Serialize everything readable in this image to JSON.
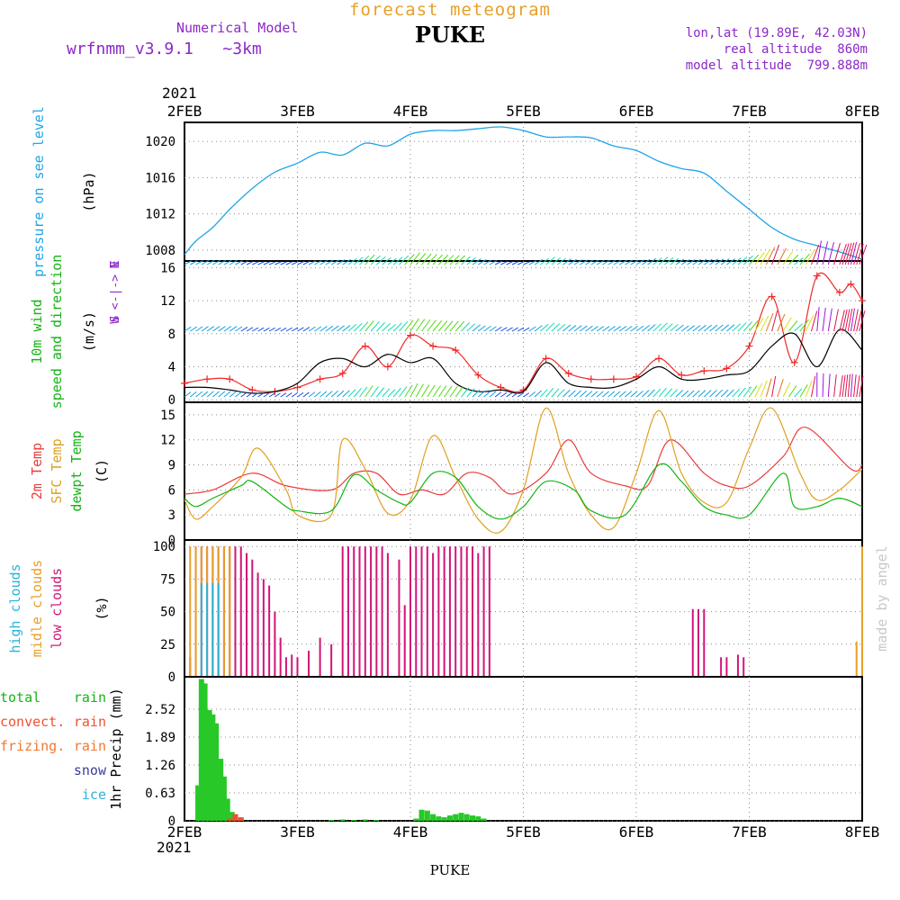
{
  "header": {
    "subtitle": "forecast meteogram",
    "station": "PUKE",
    "model_label": "Numerical Model",
    "model_name": "wrfnmm_v3.9.1   ~3km",
    "location": "lon,lat (19.89E, 42.03N)",
    "real_altitude": "real altitude  860m",
    "model_altitude": "model altitude  799.888m",
    "credit": "made by angel",
    "footer_station": "PUKE"
  },
  "colors": {
    "pressure": "#1fa5e8",
    "wind10m": "#f02828",
    "gust": "#000000",
    "temp2m": "#e83c3c",
    "sfcTemp": "#e0a020",
    "dewpt": "#14b414",
    "lowClouds": "#d21478",
    "midClouds": "#e6a028",
    "highClouds": "#2ab4d8",
    "rain": "#28c828",
    "convRain": "#f05030",
    "purpleText": "#8c28c8"
  },
  "chart_data": {
    "type": "line",
    "year": "2021",
    "x_ticks": [
      "2FEB",
      "3FEB",
      "4FEB",
      "5FEB",
      "6FEB",
      "7FEB",
      "8FEB"
    ],
    "panels": [
      {
        "id": "pressure",
        "labels": [
          "pressure on see level",
          "(hPa)"
        ],
        "yticks": [
          "1008",
          "1012",
          "1016",
          "1020"
        ],
        "ylim": [
          1006.8,
          1022.1
        ],
        "series": [
          {
            "name": "pressure on see level",
            "x": [
              0,
              0.1,
              0.25,
              0.4,
              0.6,
              0.8,
              1.0,
              1.2,
              1.4,
              1.6,
              1.8,
              2.0,
              2.2,
              2.4,
              2.6,
              2.8,
              3.0,
              3.2,
              3.4,
              3.6,
              3.8,
              4.0,
              4.2,
              4.4,
              4.6,
              4.8,
              5.0,
              5.2,
              5.4,
              5.6,
              5.8,
              6.0
            ],
            "y": [
              1007.5,
              1009,
              1010.5,
              1012.5,
              1014.8,
              1016.6,
              1017.6,
              1018.8,
              1018.5,
              1019.8,
              1019.5,
              1020.8,
              1021.2,
              1021.2,
              1021.4,
              1021.6,
              1021.2,
              1020.5,
              1020.5,
              1020.4,
              1019.5,
              1019.0,
              1017.8,
              1017.0,
              1016.5,
              1014.5,
              1012.5,
              1010.5,
              1009.2,
              1008.5,
              1007.8,
              1007.0
            ]
          }
        ]
      },
      {
        "id": "wind",
        "labels": [
          "10m wind",
          "speed and direction",
          "(m/s)"
        ],
        "direction_labels": [
          "N",
          "W <-|-> E",
          "S"
        ],
        "yticks": [
          "0",
          "4",
          "8",
          "12",
          "16"
        ],
        "ylim": [
          -0.3,
          16.8
        ],
        "series": [
          {
            "name": "10m wind",
            "x": [
              0,
              0.2,
              0.4,
              0.6,
              0.8,
              1.0,
              1.2,
              1.4,
              1.6,
              1.8,
              2.0,
              2.2,
              2.4,
              2.6,
              2.8,
              3.0,
              3.2,
              3.4,
              3.6,
              3.8,
              4.0,
              4.2,
              4.4,
              4.6,
              4.8,
              5.0,
              5.2,
              5.4,
              5.6,
              5.8,
              5.9,
              6.0
            ],
            "y": [
              2.0,
              2.5,
              2.5,
              1.2,
              1.0,
              1.5,
              2.5,
              3.2,
              6.5,
              4.0,
              7.8,
              6.5,
              6.0,
              3.0,
              1.5,
              1.2,
              5.0,
              3.2,
              2.5,
              2.5,
              2.8,
              5.0,
              3.0,
              3.5,
              3.8,
              6.5,
              12.5,
              4.5,
              15.0,
              13.0,
              14.0,
              12.0
            ]
          },
          {
            "name": "gust",
            "x": [
              0,
              0.2,
              0.4,
              0.6,
              0.8,
              1.0,
              1.2,
              1.4,
              1.6,
              1.8,
              2.0,
              2.2,
              2.4,
              2.6,
              2.8,
              3.0,
              3.2,
              3.4,
              3.6,
              3.8,
              4.0,
              4.2,
              4.4,
              4.6,
              4.8,
              5.0,
              5.2,
              5.4,
              5.6,
              5.8,
              6.0
            ],
            "y": [
              1.5,
              1.5,
              1.2,
              0.8,
              1.0,
              2.0,
              4.5,
              5.0,
              4.0,
              5.5,
              4.5,
              5.0,
              2.0,
              1.0,
              1.2,
              1.0,
              4.5,
              2.0,
              1.5,
              1.5,
              2.5,
              4.0,
              2.5,
              2.5,
              3.0,
              3.5,
              6.5,
              8.0,
              4.0,
              8.5,
              6.0
            ]
          }
        ]
      },
      {
        "id": "temp",
        "labels": [
          "2m Temp",
          "SFC Temp",
          "dewpt Temp",
          "(C)"
        ],
        "yticks": [
          "0",
          "3",
          "6",
          "9",
          "12",
          "15"
        ],
        "ylim": [
          0,
          16.5
        ],
        "series": [
          {
            "name": "2m Temp",
            "x": [
              0,
              0.25,
              0.6,
              0.9,
              1.3,
              1.5,
              1.7,
              1.9,
              2.1,
              2.3,
              2.5,
              2.7,
              2.9,
              3.2,
              3.4,
              3.6,
              3.9,
              4.1,
              4.3,
              4.6,
              4.8,
              5.0,
              5.3,
              5.5,
              5.9,
              6.0
            ],
            "y": [
              5.5,
              6.0,
              8.0,
              6.5,
              6.0,
              8.0,
              8.0,
              5.5,
              6.0,
              5.5,
              8.0,
              7.5,
              5.5,
              8.0,
              12.0,
              8.0,
              6.5,
              6.5,
              12.0,
              8.0,
              6.5,
              6.5,
              10.0,
              13.5,
              8.5,
              9.0
            ]
          },
          {
            "name": "SFC Temp",
            "x": [
              0,
              0.1,
              0.25,
              0.5,
              0.65,
              0.9,
              1.0,
              1.3,
              1.4,
              1.6,
              1.8,
              2.0,
              2.2,
              2.4,
              2.6,
              2.8,
              3.0,
              3.2,
              3.4,
              3.6,
              3.8,
              4.0,
              4.2,
              4.4,
              4.6,
              4.8,
              5.0,
              5.2,
              5.45,
              5.6,
              5.8,
              6.0
            ],
            "y": [
              4.8,
              2.5,
              4.0,
              7.5,
              11.0,
              6.0,
              3.0,
              3.0,
              12.0,
              8.5,
              3.2,
              4.8,
              12.5,
              7.5,
              2.5,
              1.0,
              6.0,
              15.8,
              8.0,
              3.0,
              1.5,
              8.0,
              15.5,
              8.0,
              4.5,
              4.5,
              11.0,
              15.8,
              8.0,
              4.8,
              6.0,
              8.5
            ]
          },
          {
            "name": "dewpt Temp",
            "x": [
              0,
              0.1,
              0.25,
              0.5,
              0.6,
              0.9,
              1.0,
              1.3,
              1.5,
              1.7,
              1.9,
              2.0,
              2.2,
              2.4,
              2.6,
              2.8,
              3.0,
              3.2,
              3.45,
              3.6,
              3.9,
              4.2,
              4.4,
              4.6,
              4.8,
              5.0,
              5.3,
              5.4,
              5.6,
              5.8,
              6.0
            ],
            "y": [
              5.0,
              4.0,
              5.0,
              6.5,
              7.0,
              4.0,
              3.5,
              3.5,
              7.8,
              6.0,
              4.5,
              4.5,
              8.0,
              7.5,
              4.0,
              2.5,
              4.0,
              7.0,
              6.0,
              3.5,
              3.0,
              9.0,
              7.0,
              4.0,
              3.0,
              3.0,
              8.0,
              4.0,
              4.0,
              5.0,
              4.0
            ]
          }
        ]
      },
      {
        "id": "clouds",
        "labels": [
          "high clouds",
          "midle clouds",
          "low clouds",
          "(%)"
        ],
        "yticks": [
          "0",
          "25",
          "50",
          "75",
          "100"
        ],
        "ylim": [
          0,
          105
        ],
        "series": [
          {
            "name": "low clouds",
            "x": [
              0.05,
              0.1,
              0.15,
              0.2,
              0.25,
              0.3,
              0.35,
              0.4,
              0.45,
              0.5,
              0.55,
              0.6,
              0.65,
              0.7,
              0.75,
              0.8,
              0.85,
              0.9,
              0.95,
              1.0,
              1.1,
              1.2,
              1.3,
              1.4,
              1.45,
              1.5,
              1.55,
              1.6,
              1.65,
              1.7,
              1.75,
              1.8,
              1.9,
              1.95,
              2.0,
              2.05,
              2.1,
              2.15,
              2.2,
              2.25,
              2.3,
              2.35,
              2.4,
              2.45,
              2.5,
              2.55,
              2.6,
              2.65,
              2.7,
              4.5,
              4.55,
              4.6,
              4.75,
              4.8,
              4.9,
              4.95
            ],
            "y": [
              15,
              100,
              100,
              100,
              100,
              100,
              100,
              100,
              100,
              100,
              95,
              90,
              80,
              75,
              70,
              50,
              30,
              15,
              17,
              15,
              20,
              30,
              25,
              100,
              100,
              100,
              100,
              100,
              100,
              100,
              100,
              95,
              90,
              55,
              100,
              100,
              100,
              100,
              95,
              100,
              100,
              100,
              100,
              100,
              100,
              100,
              95,
              100,
              100,
              52,
              52,
              52,
              15,
              15,
              17,
              15
            ]
          },
          {
            "name": "midle clouds",
            "x": [
              0.05,
              0.1,
              0.15,
              0.2,
              0.25,
              0.3,
              0.35,
              0.4,
              5.95,
              6.0
            ],
            "y": [
              100,
              100,
              100,
              100,
              100,
              100,
              100,
              100,
              27,
              100
            ]
          },
          {
            "name": "high clouds",
            "x": [
              0.15,
              0.2,
              0.25,
              0.3
            ],
            "y": [
              72,
              72,
              72,
              72
            ]
          }
        ]
      },
      {
        "id": "precip",
        "labels": [
          "total",
          "rain",
          "convect.",
          "rain",
          "frizing.",
          "rain",
          "snow",
          "ice",
          "1hr Precip (mm)"
        ],
        "yticks": [
          "0",
          "0.63",
          "1.26",
          "1.89",
          "2.52"
        ],
        "ylim": [
          0,
          3.25
        ],
        "series": [
          {
            "name": "total rain",
            "x": [
              0.12,
              0.15,
              0.18,
              0.22,
              0.25,
              0.28,
              0.32,
              0.35,
              0.38,
              0.42,
              0.45,
              1.3,
              1.4,
              1.5,
              1.6,
              1.7,
              2.05,
              2.1,
              2.15,
              2.2,
              2.25,
              2.3,
              2.35,
              2.4,
              2.45,
              2.5,
              2.55,
              2.6,
              2.65
            ],
            "y": [
              0.8,
              3.2,
              3.1,
              2.5,
              2.4,
              2.2,
              1.4,
              1.0,
              0.5,
              0.2,
              0.1,
              0.02,
              0.03,
              0.02,
              0.03,
              0.02,
              0.05,
              0.25,
              0.23,
              0.15,
              0.1,
              0.08,
              0.12,
              0.15,
              0.18,
              0.15,
              0.12,
              0.1,
              0.05
            ]
          },
          {
            "name": "convect. rain",
            "x": [
              0.4,
              0.45,
              0.5
            ],
            "y": [
              0.05,
              0.15,
              0.08
            ]
          }
        ]
      }
    ]
  }
}
